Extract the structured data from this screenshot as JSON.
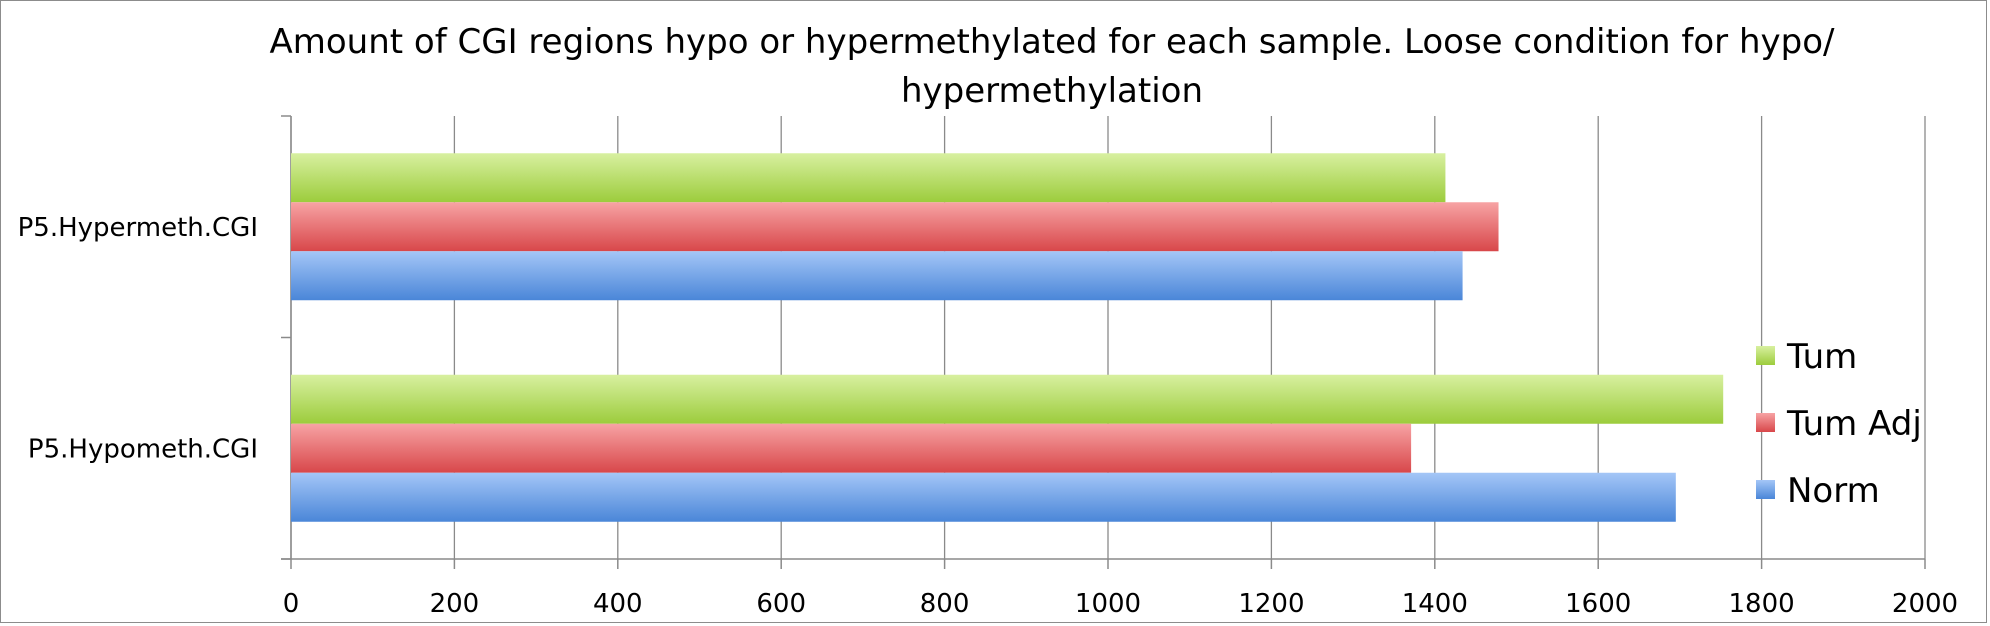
{
  "chart_data": {
    "type": "bar",
    "orientation": "horizontal",
    "title": "Amount of CGI regions hypo or hypermethylated for each sample. Loose condition for hypo/ hypermethylation",
    "title_lines": [
      "Amount of CGI regions hypo or hypermethylated for each sample. Loose condition for hypo/",
      "hypermethylation"
    ],
    "categories": [
      "P5.Hypermeth.CGI",
      "P5.Hypometh.CGI"
    ],
    "series": [
      {
        "name": "Tum",
        "values": [
          1413,
          1753
        ],
        "color": "#9ccc3c",
        "color_light": "#d8f0a0"
      },
      {
        "name": "Tum Adj",
        "values": [
          1478,
          1371
        ],
        "color": "#d8474a",
        "color_light": "#f7a3a4"
      },
      {
        "name": "Norm",
        "values": [
          1434,
          1695
        ],
        "color": "#4a86d8",
        "color_light": "#a4c6f7"
      }
    ],
    "x_ticks": [
      "0",
      "200",
      "400",
      "600",
      "800",
      "1000",
      "1200",
      "1400",
      "1600",
      "1800",
      "2000"
    ],
    "xlim": [
      0,
      2000
    ],
    "xlabel": "",
    "ylabel": "",
    "grid": "vertical",
    "legend_position": "right"
  }
}
